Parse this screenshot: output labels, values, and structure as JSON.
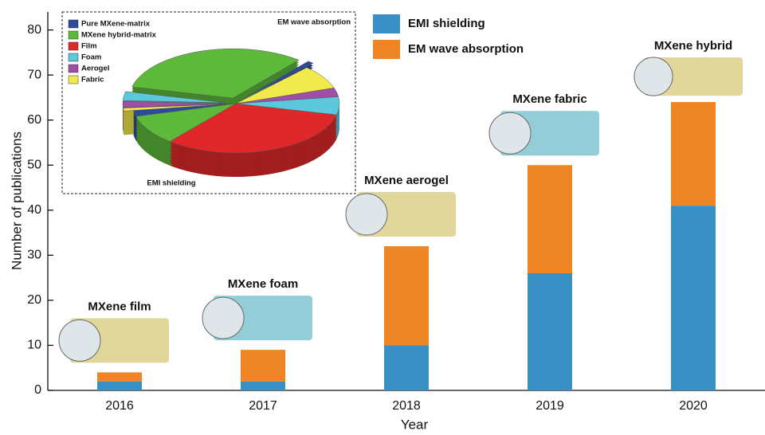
{
  "chart_data": [
    {
      "type": "bar",
      "stacked": true,
      "x_label": "Year",
      "y_label": "Number of publications",
      "categories": [
        "2016",
        "2017",
        "2018",
        "2019",
        "2020"
      ],
      "series": [
        {
          "name": "EMI shielding",
          "color": "#3b8fc7",
          "values": [
            2,
            2,
            10,
            26,
            41
          ]
        },
        {
          "name": "EM wave absorption",
          "color": "#ef8626",
          "values": [
            2,
            7,
            22,
            24,
            23
          ]
        }
      ],
      "ylim": [
        0,
        84
      ],
      "yticks": [
        0,
        10,
        20,
        30,
        40,
        50,
        60,
        70,
        80
      ],
      "annotations": [
        "MXene film",
        "MXene foam",
        "MXene aerogel",
        "MXene fabric",
        "MXene hybrid"
      ]
    },
    {
      "type": "pie",
      "categories": [
        "Pure MXene-matrix",
        "MXene hybrid-matrix",
        "Film",
        "Foam",
        "Aerogel",
        "Fabric"
      ],
      "colors": [
        "#2e4a9c",
        "#5cb93a",
        "#e0282a",
        "#5bc8dc",
        "#a04fa8",
        "#f1ea4d"
      ],
      "series": [
        {
          "name": "EMI shielding",
          "values": [
            2,
            10,
            33,
            6,
            3,
            8
          ]
        },
        {
          "name": "EM wave absorption",
          "values": [
            1,
            33,
            0,
            3,
            2,
            1
          ]
        }
      ]
    }
  ]
}
